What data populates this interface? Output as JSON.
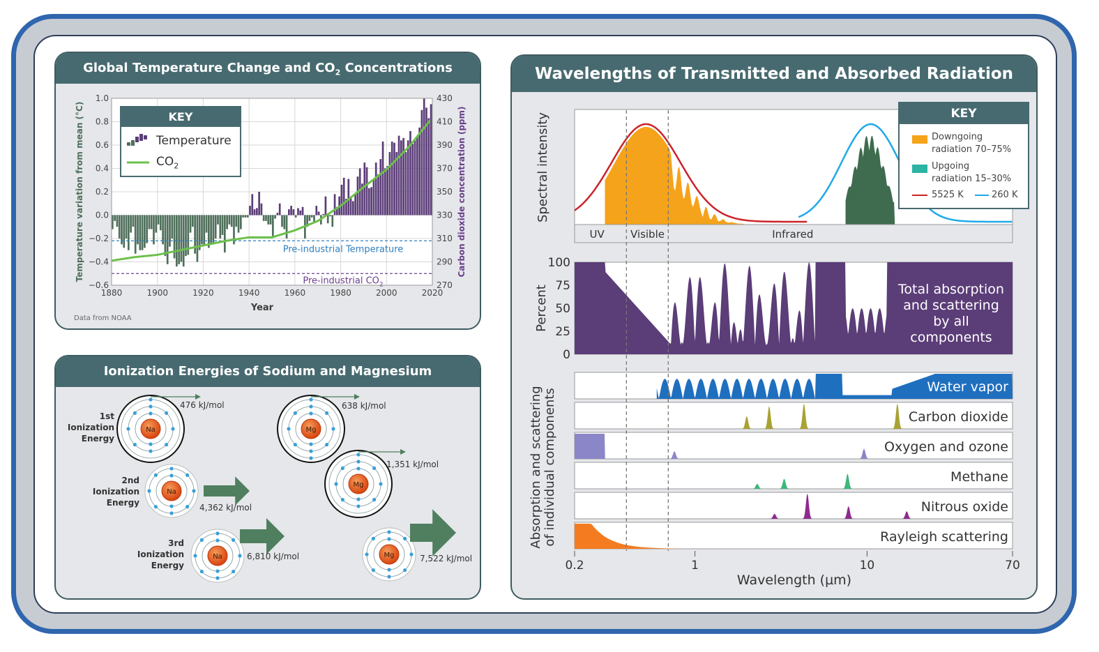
{
  "panels": {
    "temperature": {
      "title": "Global Temperature Change and CO",
      "title_sub": "2",
      "title_suffix": " Concentrations",
      "source": "Data from NOAA"
    },
    "ionization": {
      "title": "Ionization Energies of Sodium and Magnesium",
      "rows": [
        {
          "label_line1": "1st",
          "label_line2": "Ionization",
          "label_line3": "Energy"
        },
        {
          "label_line1": "2nd",
          "label_line2": "Ionization",
          "label_line3": "Energy"
        },
        {
          "label_line1": "3rd",
          "label_line2": "Ionization",
          "label_line3": "Energy"
        }
      ],
      "sodium": {
        "symbol": "Na",
        "energies": [
          "476 kJ/mol",
          "4,362 kJ/mol",
          "6,810 kJ/mol"
        ]
      },
      "magnesium": {
        "symbol": "Mg",
        "energies": [
          "638 kJ/mol",
          "1,351 kJ/mol",
          "7,522 kJ/mol"
        ]
      },
      "colors": {
        "nucleus": "#e8591a",
        "electron": "#3aa0d8",
        "arrow": "#4f7f5f"
      }
    },
    "radiation": {
      "title": "Wavelengths of Transmitted and Absorbed Radiation"
    }
  },
  "chart_data": [
    {
      "type": "bar+line",
      "title": "Global Temperature Change and CO2 Concentrations",
      "xlabel": "Year",
      "ylabel": "Temperature variation from mean (°C)",
      "y2label": "Carbon dioxide concentration (ppm)",
      "xlim": [
        1880,
        2020
      ],
      "ylim": [
        -0.6,
        1.0
      ],
      "y2lim": [
        270,
        430
      ],
      "xticks": [
        "1880",
        "1900",
        "1920",
        "1940",
        "1960",
        "1980",
        "2000",
        "2020"
      ],
      "yticks": [
        "1.0",
        "0.8",
        "0.6",
        "0.4",
        "0.2",
        "0.0",
        "−0.2",
        "−0.4",
        "−0.6"
      ],
      "y2ticks": [
        "430",
        "410",
        "390",
        "370",
        "350",
        "330",
        "310",
        "290",
        "270"
      ],
      "key": {
        "title": "KEY",
        "temperature": "Temperature",
        "co2": "CO",
        "co2_sub": "2"
      },
      "reference_lines": [
        {
          "label": "Pre-industrial Temperature",
          "axis": "y",
          "value": -0.22,
          "color": "#2f7fc0"
        },
        {
          "label": "Pre-industrial CO",
          "label_sub": "2",
          "axis": "y2",
          "value": 280,
          "color": "#6b3f8c"
        }
      ],
      "temperature_series": {
        "name": "Temperature",
        "color_negative": "#4f6f5b",
        "color_positive": "#5b3d78",
        "x": [
          1880,
          1881,
          1882,
          1883,
          1884,
          1885,
          1886,
          1887,
          1888,
          1889,
          1890,
          1891,
          1892,
          1893,
          1894,
          1895,
          1896,
          1897,
          1898,
          1899,
          1900,
          1901,
          1902,
          1903,
          1904,
          1905,
          1906,
          1907,
          1908,
          1909,
          1910,
          1911,
          1912,
          1913,
          1914,
          1915,
          1916,
          1917,
          1918,
          1919,
          1920,
          1921,
          1922,
          1923,
          1924,
          1925,
          1926,
          1927,
          1928,
          1929,
          1930,
          1931,
          1932,
          1933,
          1934,
          1935,
          1936,
          1937,
          1938,
          1939,
          1940,
          1941,
          1942,
          1943,
          1944,
          1945,
          1946,
          1947,
          1948,
          1949,
          1950,
          1951,
          1952,
          1953,
          1954,
          1955,
          1956,
          1957,
          1958,
          1959,
          1960,
          1961,
          1962,
          1963,
          1964,
          1965,
          1966,
          1967,
          1968,
          1969,
          1970,
          1971,
          1972,
          1973,
          1974,
          1975,
          1976,
          1977,
          1978,
          1979,
          1980,
          1981,
          1982,
          1983,
          1984,
          1985,
          1986,
          1987,
          1988,
          1989,
          1990,
          1991,
          1992,
          1993,
          1994,
          1995,
          1996,
          1997,
          1998,
          1999,
          2000,
          2001,
          2002,
          2003,
          2004,
          2005,
          2006,
          2007,
          2008,
          2009,
          2010,
          2011,
          2012,
          2013,
          2014,
          2015,
          2016,
          2017,
          2018,
          2019
        ],
        "values": [
          -0.12,
          -0.05,
          -0.1,
          -0.2,
          -0.25,
          -0.28,
          -0.2,
          -0.3,
          -0.15,
          -0.1,
          -0.33,
          -0.25,
          -0.3,
          -0.3,
          -0.28,
          -0.24,
          -0.12,
          -0.12,
          -0.25,
          -0.15,
          -0.08,
          -0.13,
          -0.25,
          -0.35,
          -0.42,
          -0.27,
          -0.2,
          -0.37,
          -0.44,
          -0.42,
          -0.4,
          -0.44,
          -0.35,
          -0.34,
          -0.15,
          -0.1,
          -0.33,
          -0.4,
          -0.3,
          -0.25,
          -0.25,
          -0.15,
          -0.28,
          -0.25,
          -0.25,
          -0.2,
          -0.08,
          -0.2,
          -0.17,
          -0.32,
          -0.12,
          -0.08,
          -0.1,
          -0.25,
          -0.1,
          -0.15,
          -0.12,
          -0.02,
          -0.02,
          -0.02,
          0.08,
          0.18,
          0.05,
          0.06,
          0.2,
          0.1,
          -0.05,
          -0.05,
          -0.08,
          -0.08,
          -0.18,
          -0.03,
          0.02,
          0.1,
          -0.1,
          -0.12,
          -0.2,
          0.05,
          0.08,
          0.05,
          -0.02,
          0.06,
          0.04,
          0.07,
          -0.2,
          -0.1,
          -0.05,
          -0.02,
          -0.06,
          0.08,
          0.03,
          -0.08,
          0.01,
          0.16,
          -0.07,
          -0.01,
          -0.1,
          0.18,
          0.07,
          0.16,
          0.26,
          0.32,
          0.14,
          0.31,
          0.16,
          0.12,
          0.18,
          0.33,
          0.4,
          0.27,
          0.45,
          0.41,
          0.23,
          0.24,
          0.31,
          0.45,
          0.35,
          0.48,
          0.63,
          0.4,
          0.42,
          0.54,
          0.63,
          0.62,
          0.54,
          0.68,
          0.64,
          0.66,
          0.54,
          0.64,
          0.72,
          0.61,
          0.64,
          0.68,
          0.75,
          0.9,
          1.0,
          0.92,
          0.83,
          0.95
        ]
      },
      "co2_series": {
        "name": "CO2",
        "color": "#6cc04a",
        "x": [
          1880,
          1890,
          1900,
          1910,
          1920,
          1930,
          1940,
          1950,
          1960,
          1970,
          1980,
          1990,
          2000,
          2010,
          2019
        ],
        "values": [
          291,
          294,
          296,
          300,
          304,
          308,
          311,
          311,
          317,
          325,
          338,
          354,
          369,
          389,
          411
        ]
      }
    },
    {
      "type": "area",
      "title": "Wavelengths of Transmitted and Absorbed Radiation",
      "xlabel": "Wavelength (µm)",
      "xscale": "log",
      "xlim": [
        0.2,
        70
      ],
      "xticks": [
        "0.2",
        "1",
        "10",
        "70"
      ],
      "spectral": {
        "ylabel": "Spectral intensity",
        "bands": [
          "UV",
          "Visible",
          "Infrared"
        ],
        "key": {
          "title": "KEY",
          "downgoing": "Downgoing",
          "downgoing_line2": "radiation 70–75%",
          "upgoing": "Upgoing",
          "upgoing_line2": "radiation 15–30%",
          "sun": "5525 K",
          "earth": "260 K"
        },
        "colors": {
          "downgoing": "#f5a31b",
          "upgoing": "#2bb3a3",
          "upgoing_fill": "#3f6b4f",
          "sun": "#cc2229",
          "earth": "#1fa9e6"
        }
      },
      "total": {
        "ylabel": "Percent",
        "yticks": [
          "100",
          "75",
          "50",
          "25",
          "0"
        ],
        "label_lines": [
          "Total absorption",
          "and scattering",
          "by all",
          "components"
        ],
        "color": "#5b3d78"
      },
      "components": {
        "ylabel_line1": "Absorption and scattering",
        "ylabel_line2": "of individual components",
        "series": [
          {
            "name": "Water vapor",
            "color": "#1f6fbf"
          },
          {
            "name": "Carbon dioxide",
            "color": "#a9a234"
          },
          {
            "name": "Oxygen and ozone",
            "color": "#8b86c8"
          },
          {
            "name": "Methane",
            "color": "#3cb878"
          },
          {
            "name": "Nitrous oxide",
            "color": "#8e2a8e"
          },
          {
            "name": "Rayleigh scattering",
            "color": "#f47b20"
          }
        ]
      }
    }
  ]
}
